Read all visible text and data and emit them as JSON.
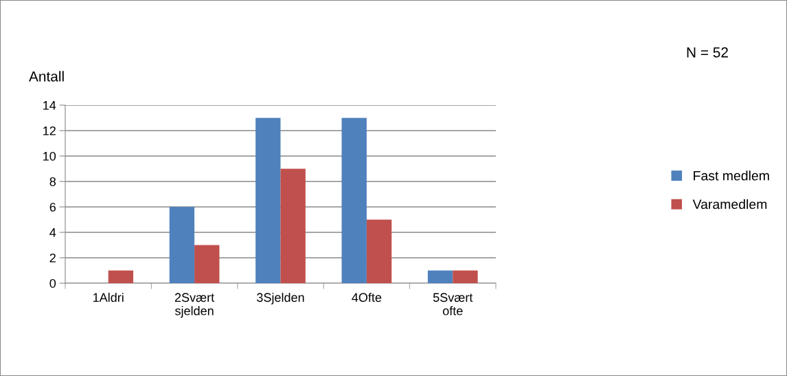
{
  "chart_data": {
    "type": "bar",
    "ylabel": "Antall",
    "categories": [
      "1Aldri",
      "2Svært\nsjelden",
      "3Sjelden",
      "4Ofte",
      "5Svært\nofte"
    ],
    "series": [
      {
        "name": "Fast medlem",
        "color": "#4f81bd",
        "values": [
          0,
          6,
          13,
          13,
          1
        ]
      },
      {
        "name": "Varamedlem",
        "color": "#c0504d",
        "values": [
          1,
          3,
          9,
          5,
          1
        ]
      }
    ],
    "ylim": [
      0,
      14
    ],
    "yticks": [
      0,
      2,
      4,
      6,
      8,
      10,
      12,
      14
    ],
    "grid": "y",
    "legend": "right",
    "annotations": [
      "N = 52"
    ]
  }
}
